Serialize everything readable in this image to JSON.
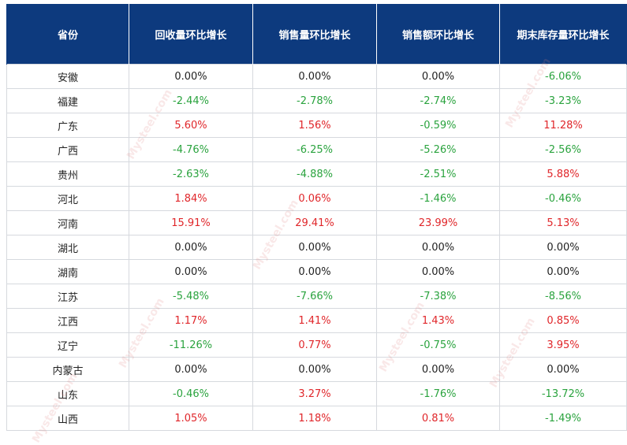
{
  "table": {
    "headers": [
      "省份",
      "回收量环比增长",
      "销售量环比增长",
      "销售额环比增长",
      "期末库存量环比增长"
    ],
    "rows": [
      [
        "安徽",
        "0.00%",
        "0.00%",
        "0.00%",
        "-6.06%"
      ],
      [
        "福建",
        "-2.44%",
        "-2.78%",
        "-2.74%",
        "-3.23%"
      ],
      [
        "广东",
        "5.60%",
        "1.56%",
        "-0.59%",
        "11.28%"
      ],
      [
        "广西",
        "-4.76%",
        "-6.25%",
        "-5.26%",
        "-2.56%"
      ],
      [
        "贵州",
        "-2.63%",
        "-4.88%",
        "-2.51%",
        "5.88%"
      ],
      [
        "河北",
        "1.84%",
        "0.06%",
        "-1.46%",
        "-0.46%"
      ],
      [
        "河南",
        "15.91%",
        "29.41%",
        "23.99%",
        "5.13%"
      ],
      [
        "湖北",
        "0.00%",
        "0.00%",
        "0.00%",
        "0.00%"
      ],
      [
        "湖南",
        "0.00%",
        "0.00%",
        "0.00%",
        "0.00%"
      ],
      [
        "江苏",
        "-5.48%",
        "-7.66%",
        "-7.38%",
        "-8.56%"
      ],
      [
        "江西",
        "1.17%",
        "1.41%",
        "1.43%",
        "0.85%"
      ],
      [
        "辽宁",
        "-11.26%",
        "0.77%",
        "-0.75%",
        "3.95%"
      ],
      [
        "内蒙古",
        "0.00%",
        "0.00%",
        "0.00%",
        "0.00%"
      ],
      [
        "山东",
        "-0.46%",
        "3.27%",
        "-1.76%",
        "-13.72%"
      ],
      [
        "山西",
        "1.05%",
        "1.18%",
        "0.81%",
        "-1.49%"
      ]
    ]
  },
  "colors": {
    "header_bg": "#0d3a7e",
    "positive": "#e0262a",
    "negative": "#2aa33e",
    "neutral": "#222222"
  },
  "watermark": "Mysteel.com"
}
